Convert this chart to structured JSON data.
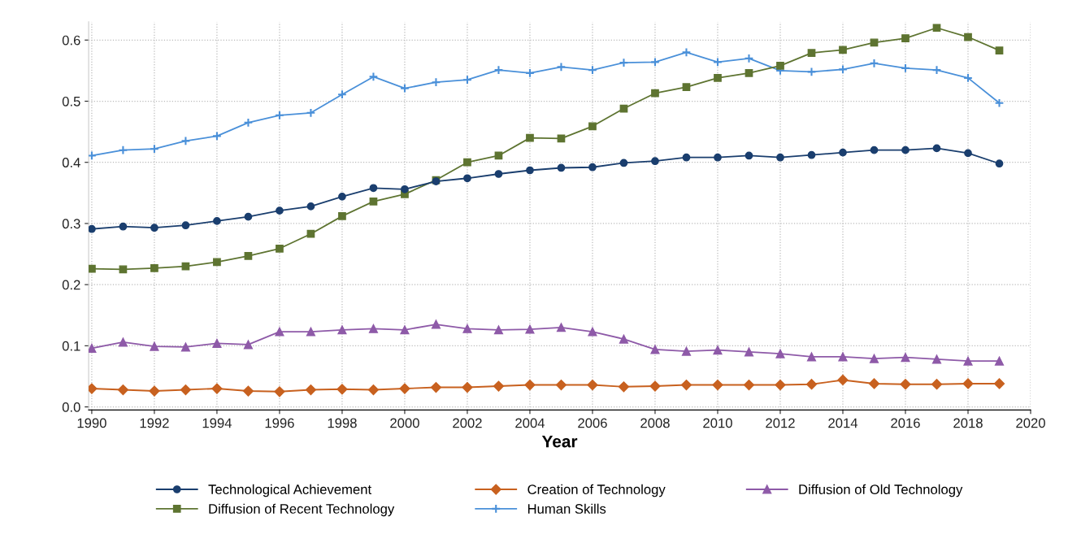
{
  "chart_data": {
    "type": "line",
    "xlabel": "Year",
    "x": [
      1990,
      1991,
      1992,
      1993,
      1994,
      1995,
      1996,
      1997,
      1998,
      1999,
      2000,
      2001,
      2002,
      2003,
      2004,
      2005,
      2006,
      2007,
      2008,
      2009,
      2010,
      2011,
      2012,
      2013,
      2014,
      2015,
      2016,
      2017,
      2018,
      2019
    ],
    "series": [
      {
        "name": "Technological Achievement",
        "color": "#1a3e6e",
        "marker": "circle",
        "values": [
          0.291,
          0.295,
          0.293,
          0.297,
          0.304,
          0.311,
          0.321,
          0.328,
          0.344,
          0.358,
          0.356,
          0.369,
          0.374,
          0.381,
          0.387,
          0.391,
          0.392,
          0.399,
          0.402,
          0.408,
          0.408,
          0.411,
          0.408,
          0.412,
          0.416,
          0.42,
          0.42,
          0.423,
          0.415,
          0.398
        ]
      },
      {
        "name": "Creation of Technology",
        "color": "#c8611f",
        "marker": "diamond",
        "values": [
          0.03,
          0.028,
          0.026,
          0.028,
          0.03,
          0.026,
          0.025,
          0.028,
          0.029,
          0.028,
          0.03,
          0.032,
          0.032,
          0.034,
          0.036,
          0.036,
          0.036,
          0.033,
          0.034,
          0.036,
          0.036,
          0.036,
          0.036,
          0.037,
          0.044,
          0.038,
          0.037,
          0.037,
          0.038,
          0.038
        ]
      },
      {
        "name": "Diffusion of Old Technology",
        "color": "#8e5aa8",
        "marker": "triangle",
        "values": [
          0.096,
          0.106,
          0.099,
          0.098,
          0.104,
          0.102,
          0.123,
          0.123,
          0.126,
          0.128,
          0.126,
          0.135,
          0.128,
          0.126,
          0.127,
          0.13,
          0.123,
          0.111,
          0.094,
          0.091,
          0.093,
          0.09,
          0.087,
          0.082,
          0.082,
          0.079,
          0.081,
          0.078,
          0.075,
          0.075
        ]
      },
      {
        "name": "Diffusion of Recent Technology",
        "color": "#5e7431",
        "marker": "square",
        "values": [
          0.226,
          0.225,
          0.227,
          0.23,
          0.237,
          0.247,
          0.259,
          0.283,
          0.312,
          0.336,
          0.348,
          0.371,
          0.4,
          0.411,
          0.44,
          0.439,
          0.459,
          0.488,
          0.513,
          0.523,
          0.538,
          0.546,
          0.558,
          0.579,
          0.584,
          0.596,
          0.603,
          0.62,
          0.605,
          0.583
        ]
      },
      {
        "name": "Human Skills",
        "color": "#4a90d9",
        "marker": "cross",
        "values": [
          0.411,
          0.42,
          0.422,
          0.435,
          0.443,
          0.465,
          0.477,
          0.481,
          0.511,
          0.54,
          0.521,
          0.531,
          0.535,
          0.551,
          0.546,
          0.556,
          0.551,
          0.563,
          0.564,
          0.58,
          0.564,
          0.57,
          0.55,
          0.548,
          0.552,
          0.562,
          0.554,
          0.551,
          0.538,
          0.497
        ]
      }
    ],
    "xlim": [
      1989.9,
      2020
    ],
    "xticks": [
      1990,
      1992,
      1994,
      1996,
      1998,
      2000,
      2002,
      2004,
      2006,
      2008,
      2010,
      2012,
      2014,
      2016,
      2018,
      2020
    ],
    "ylim": [
      -0.005,
      0.63
    ],
    "yticks": [
      {
        "value": 0,
        "label": "0.0"
      },
      {
        "value": 0.1,
        "label": "0.1"
      },
      {
        "value": 0.2,
        "label": "0.2"
      },
      {
        "value": 0.3,
        "label": "0.3"
      },
      {
        "value": 0.4,
        "label": "0.4"
      },
      {
        "value": 0.5,
        "label": "0.5"
      },
      {
        "value": 0.6,
        "label": "0.6"
      }
    ],
    "grid": true,
    "legend": "bottom",
    "line_style": "solid"
  }
}
